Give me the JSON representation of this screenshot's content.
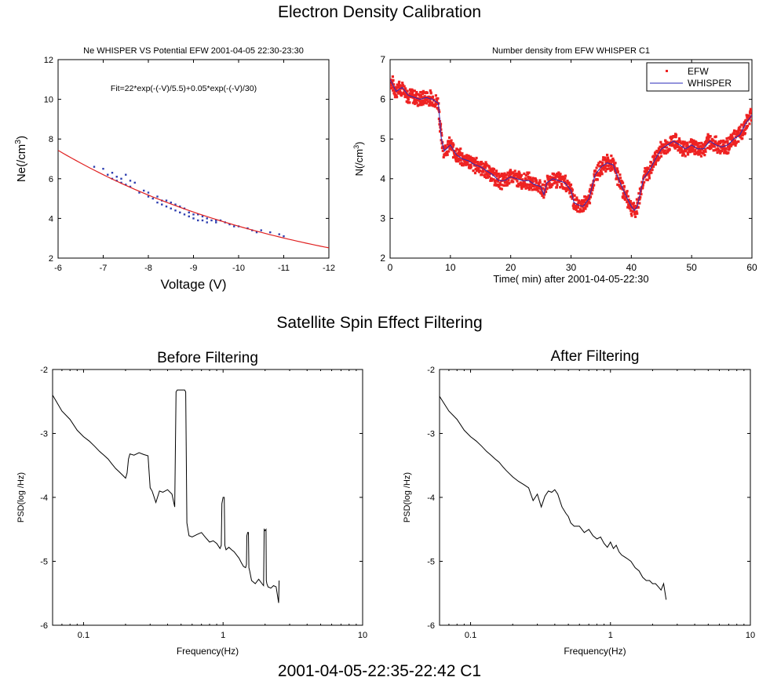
{
  "headings": {
    "section1": "Electron Density Calibration",
    "section2": "Satellite Spin Effect Filtering",
    "footer": "2001-04-05-22:35-22:42 C1"
  },
  "chart_data": [
    {
      "id": "calibration",
      "type": "scatter",
      "title": "Ne WHISPER VS Potential EFW 2001-04-05 22:30-23:30",
      "xlabel": "Voltage (V)",
      "ylabel": "Ne(/cm3)",
      "annotation": "Fit=22*exp(-(-V)/5.5)+0.05*exp(-(-V)/30)",
      "xlim": [
        -6,
        -12
      ],
      "ylim": [
        2,
        12
      ],
      "xticks": [
        -6,
        -7,
        -8,
        -9,
        -10,
        -11,
        -12
      ],
      "yticks": [
        2,
        4,
        6,
        8,
        10,
        12
      ],
      "grid": false,
      "series": [
        {
          "type": "scatter",
          "color": "#2e3fb0",
          "points": [
            [
              -6.8,
              6.6
            ],
            [
              -7.0,
              6.5
            ],
            [
              -7.1,
              6.2
            ],
            [
              -7.2,
              6.3
            ],
            [
              -7.2,
              6.0
            ],
            [
              -7.3,
              6.1
            ],
            [
              -7.3,
              5.9
            ],
            [
              -7.4,
              6.0
            ],
            [
              -7.4,
              5.8
            ],
            [
              -7.5,
              6.2
            ],
            [
              -7.5,
              5.7
            ],
            [
              -7.6,
              5.9
            ],
            [
              -7.6,
              5.6
            ],
            [
              -7.7,
              5.8
            ],
            [
              -7.8,
              5.3
            ],
            [
              -7.9,
              5.4
            ],
            [
              -8.0,
              5.1
            ],
            [
              -8.0,
              5.3
            ],
            [
              -8.1,
              5.0
            ],
            [
              -8.2,
              5.1
            ],
            [
              -8.2,
              4.8
            ],
            [
              -8.3,
              4.9
            ],
            [
              -8.3,
              4.7
            ],
            [
              -8.4,
              4.9
            ],
            [
              -8.4,
              4.6
            ],
            [
              -8.5,
              4.8
            ],
            [
              -8.5,
              4.5
            ],
            [
              -8.6,
              4.7
            ],
            [
              -8.6,
              4.4
            ],
            [
              -8.7,
              4.6
            ],
            [
              -8.7,
              4.3
            ],
            [
              -8.8,
              4.5
            ],
            [
              -8.8,
              4.2
            ],
            [
              -8.9,
              4.3
            ],
            [
              -8.9,
              4.1
            ],
            [
              -9.0,
              4.2
            ],
            [
              -9.0,
              4.0
            ],
            [
              -9.1,
              4.2
            ],
            [
              -9.1,
              3.9
            ],
            [
              -9.2,
              4.1
            ],
            [
              -9.2,
              3.9
            ],
            [
              -9.3,
              4.0
            ],
            [
              -9.3,
              3.8
            ],
            [
              -9.4,
              3.9
            ],
            [
              -9.5,
              3.9
            ],
            [
              -9.5,
              3.8
            ],
            [
              -9.6,
              3.9
            ],
            [
              -9.7,
              3.8
            ],
            [
              -9.8,
              3.7
            ],
            [
              -9.9,
              3.6
            ],
            [
              -10.0,
              3.6
            ],
            [
              -10.2,
              3.5
            ],
            [
              -10.3,
              3.4
            ],
            [
              -10.4,
              3.3
            ],
            [
              -10.5,
              3.4
            ],
            [
              -10.7,
              3.3
            ],
            [
              -10.9,
              3.2
            ],
            [
              -11.0,
              3.1
            ]
          ]
        },
        {
          "type": "line",
          "color": "#e02020",
          "fit": {
            "a": 22,
            "b": 5.5,
            "c": 0.05,
            "d": 30
          },
          "x_range": [
            -6,
            -12
          ]
        }
      ]
    },
    {
      "id": "density",
      "type": "line",
      "title": "Number density from EFW WHISPER C1",
      "xlabel": "Time( min) after 2001-04-05-22:30",
      "ylabel": "N(/cm3)",
      "xlim": [
        0,
        60
      ],
      "ylim": [
        2,
        7
      ],
      "xticks": [
        0,
        10,
        20,
        30,
        40,
        50,
        60
      ],
      "yticks": [
        2,
        3,
        4,
        5,
        6,
        7
      ],
      "legend_position": "top-right",
      "grid": false,
      "series": [
        {
          "name": "EFW",
          "type": "scatter-band",
          "color": "#ee2222",
          "band": 0.18
        },
        {
          "name": "WHISPER",
          "type": "line",
          "color": "#2a2ab8",
          "x": [
            0,
            1,
            2,
            3,
            4,
            5,
            6,
            7,
            8,
            8.5,
            9,
            10,
            11,
            12,
            13,
            14,
            15,
            16,
            17,
            18,
            19,
            20,
            21,
            22,
            23,
            24,
            25,
            25.5,
            26,
            27,
            28,
            29,
            30,
            30.5,
            31,
            32,
            33,
            34,
            35,
            36,
            37,
            38,
            39,
            40,
            40.5,
            41,
            42,
            43,
            44,
            45,
            46,
            47,
            48,
            49,
            50,
            51,
            52,
            53,
            54,
            55,
            56,
            57,
            58,
            59,
            60
          ],
          "y": [
            6.5,
            6.2,
            6.3,
            6.1,
            6.05,
            6.0,
            6.05,
            6.0,
            5.9,
            5.0,
            4.7,
            4.85,
            4.6,
            4.5,
            4.45,
            4.35,
            4.3,
            4.2,
            4.1,
            3.95,
            3.95,
            4.05,
            4.0,
            3.95,
            3.95,
            3.85,
            3.8,
            3.6,
            3.9,
            4.0,
            3.95,
            3.9,
            3.7,
            3.4,
            3.35,
            3.3,
            3.5,
            4.1,
            4.3,
            4.4,
            4.35,
            3.95,
            3.6,
            3.3,
            3.2,
            3.3,
            4.0,
            4.2,
            4.5,
            4.75,
            4.85,
            4.95,
            4.85,
            4.75,
            4.85,
            4.75,
            4.75,
            4.95,
            4.85,
            4.8,
            4.85,
            5.0,
            5.1,
            5.4,
            5.6
          ]
        }
      ]
    },
    {
      "id": "before-filtering",
      "type": "line",
      "title": "Before Filtering",
      "xlabel": "Frequency(Hz)",
      "ylabel": "PSD(log /Hz)",
      "xscale": "log",
      "xlim": [
        0.06,
        10
      ],
      "ylim": [
        -6,
        -2
      ],
      "xticks": [
        0.1,
        1,
        10
      ],
      "xticklabels": [
        "0.1",
        "1",
        "10"
      ],
      "yticks": [
        -6,
        -5,
        -4,
        -3,
        -2
      ],
      "grid": false,
      "series": [
        {
          "color": "#000000",
          "x": [
            0.06,
            0.07,
            0.08,
            0.09,
            0.1,
            0.11,
            0.12,
            0.13,
            0.14,
            0.15,
            0.16,
            0.17,
            0.18,
            0.19,
            0.2,
            0.205,
            0.21,
            0.215,
            0.23,
            0.25,
            0.27,
            0.29,
            0.3,
            0.31,
            0.33,
            0.35,
            0.37,
            0.4,
            0.43,
            0.45,
            0.46,
            0.47,
            0.5,
            0.53,
            0.54,
            0.55,
            0.57,
            0.6,
            0.65,
            0.7,
            0.75,
            0.8,
            0.85,
            0.9,
            0.95,
            0.97,
            0.98,
            1.0,
            1.02,
            1.03,
            1.05,
            1.1,
            1.15,
            1.2,
            1.25,
            1.3,
            1.35,
            1.4,
            1.45,
            1.47,
            1.48,
            1.5,
            1.52,
            1.53,
            1.55,
            1.6,
            1.7,
            1.8,
            1.9,
            1.95,
            1.97,
            2.0,
            2.03,
            2.04,
            2.06,
            2.1,
            2.2,
            2.3,
            2.4,
            2.5,
            2.52
          ],
          "y": [
            -2.4,
            -2.65,
            -2.78,
            -2.95,
            -3.05,
            -3.12,
            -3.2,
            -3.28,
            -3.34,
            -3.4,
            -3.48,
            -3.55,
            -3.6,
            -3.65,
            -3.7,
            -3.62,
            -3.4,
            -3.32,
            -3.34,
            -3.3,
            -3.33,
            -3.35,
            -3.85,
            -3.9,
            -4.08,
            -3.9,
            -3.92,
            -3.88,
            -3.95,
            -4.15,
            -2.35,
            -2.32,
            -2.32,
            -2.32,
            -2.35,
            -4.4,
            -4.6,
            -4.62,
            -4.58,
            -4.55,
            -4.63,
            -4.7,
            -4.68,
            -4.72,
            -4.8,
            -4.75,
            -4.1,
            -4.0,
            -4.0,
            -4.75,
            -4.82,
            -4.78,
            -4.82,
            -4.85,
            -4.9,
            -4.95,
            -5.02,
            -5.08,
            -5.1,
            -5.05,
            -4.6,
            -4.55,
            -4.55,
            -5.1,
            -5.15,
            -5.3,
            -5.35,
            -5.28,
            -5.35,
            -5.38,
            -4.5,
            -4.52,
            -4.5,
            -5.3,
            -5.35,
            -5.4,
            -5.42,
            -5.38,
            -5.4,
            -5.65,
            -5.3
          ]
        }
      ]
    },
    {
      "id": "after-filtering",
      "type": "line",
      "title": "After Filtering",
      "xlabel": "Frequency(Hz)",
      "ylabel": "PSD(log /Hz)",
      "xscale": "log",
      "xlim": [
        0.06,
        10
      ],
      "ylim": [
        -6,
        -2
      ],
      "xticks": [
        0.1,
        1,
        10
      ],
      "xticklabels": [
        "0.1",
        "1",
        "10"
      ],
      "yticks": [
        -6,
        -5,
        -4,
        -3,
        -2
      ],
      "grid": false,
      "series": [
        {
          "color": "#000000",
          "x": [
            0.06,
            0.07,
            0.08,
            0.09,
            0.1,
            0.11,
            0.12,
            0.13,
            0.14,
            0.15,
            0.16,
            0.17,
            0.18,
            0.2,
            0.22,
            0.24,
            0.26,
            0.28,
            0.3,
            0.32,
            0.34,
            0.36,
            0.38,
            0.4,
            0.42,
            0.45,
            0.48,
            0.5,
            0.52,
            0.55,
            0.6,
            0.65,
            0.7,
            0.75,
            0.8,
            0.85,
            0.9,
            0.95,
            1.0,
            1.05,
            1.1,
            1.15,
            1.2,
            1.3,
            1.4,
            1.5,
            1.6,
            1.7,
            1.8,
            1.9,
            2.0,
            2.1,
            2.2,
            2.3,
            2.4,
            2.5
          ],
          "y": [
            -2.42,
            -2.65,
            -2.78,
            -2.95,
            -3.05,
            -3.12,
            -3.2,
            -3.28,
            -3.34,
            -3.4,
            -3.45,
            -3.52,
            -3.58,
            -3.68,
            -3.75,
            -3.8,
            -3.85,
            -4.05,
            -3.95,
            -4.15,
            -3.98,
            -3.9,
            -3.92,
            -3.88,
            -3.95,
            -4.15,
            -4.25,
            -4.3,
            -4.4,
            -4.45,
            -4.45,
            -4.55,
            -4.5,
            -4.6,
            -4.65,
            -4.62,
            -4.72,
            -4.78,
            -4.7,
            -4.8,
            -4.75,
            -4.85,
            -4.9,
            -4.95,
            -5.0,
            -5.1,
            -5.15,
            -5.25,
            -5.3,
            -5.3,
            -5.35,
            -5.35,
            -5.4,
            -5.45,
            -5.35,
            -5.6
          ]
        }
      ]
    }
  ]
}
